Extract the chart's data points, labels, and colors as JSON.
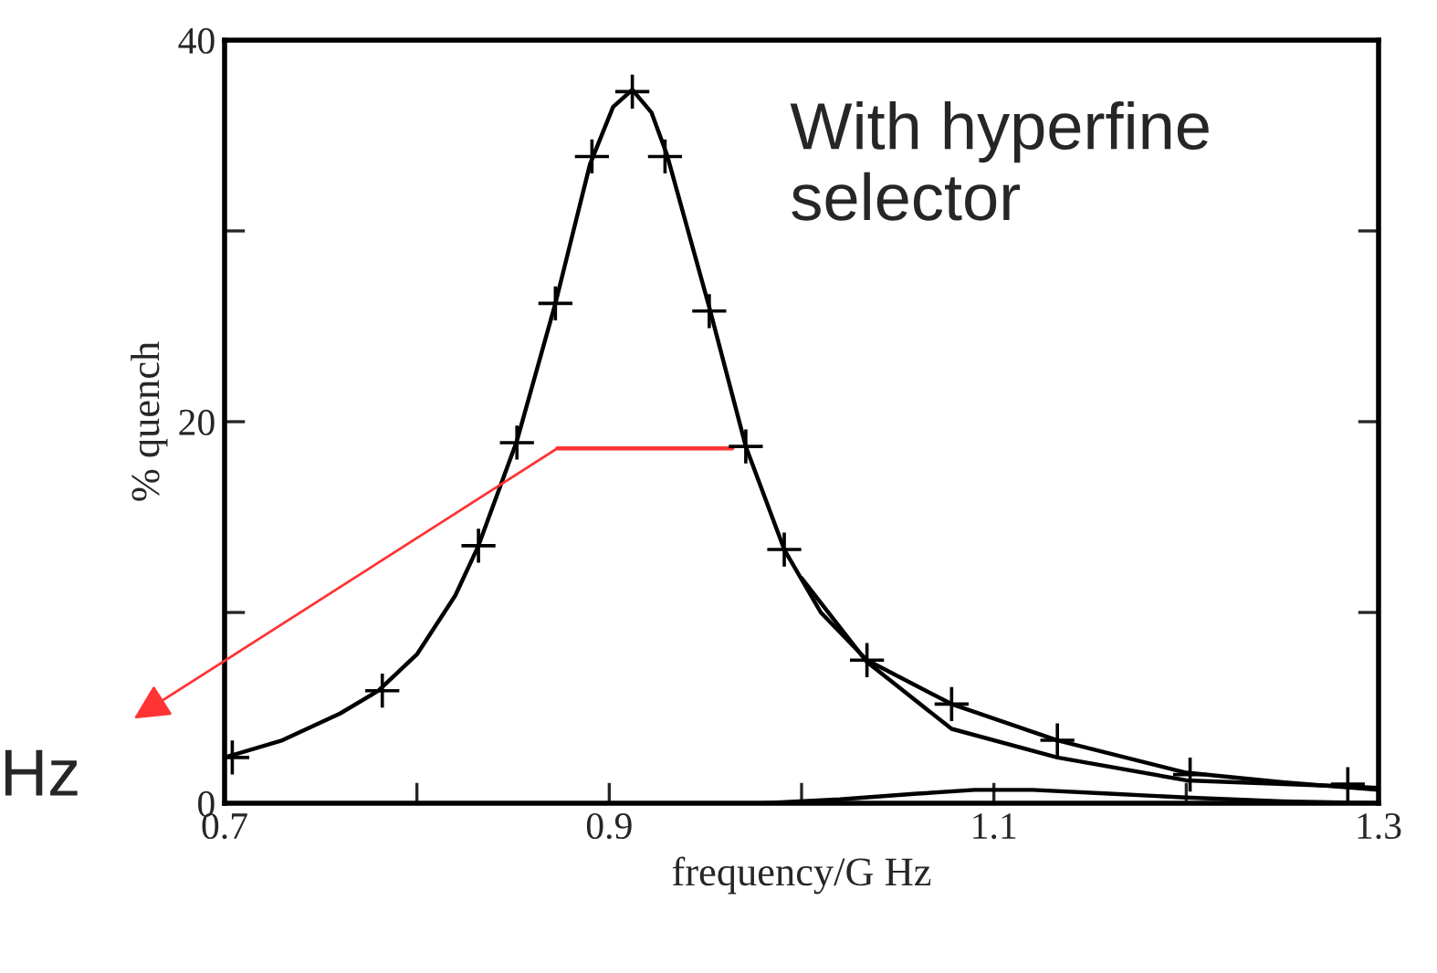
{
  "chart_data": {
    "type": "line",
    "xlabel": "frequency/G Hz",
    "ylabel": "% quench",
    "xlim": [
      0.7,
      1.3
    ],
    "xticks": [
      0.7,
      {
        "value": 0.8,
        "label": null
      },
      0.9,
      {
        "value": 1.0,
        "label": null
      },
      1.1,
      {
        "value": 1.2,
        "label": null
      },
      1.3
    ],
    "ylim": [
      0,
      40
    ],
    "yticks": [
      0,
      {
        "value": 10,
        "label": null
      },
      20,
      {
        "value": 30,
        "label": null
      },
      40
    ],
    "grid": false,
    "legend": false,
    "series": [
      {
        "type": "scatter",
        "marker": "cross",
        "color": "#000000",
        "x": [
          0.704,
          0.782,
          0.832,
          0.852,
          0.872,
          0.891,
          0.912,
          0.929,
          0.952,
          0.971,
          0.991,
          1.034,
          1.078,
          1.133,
          1.202,
          1.284
        ],
        "values": [
          2.4,
          5.9,
          13.5,
          18.9,
          26.2,
          33.9,
          37.3,
          33.9,
          25.8,
          18.7,
          13.3,
          7.5,
          5.2,
          3.3,
          1.5,
          1.0
        ]
      },
      {
        "line_style": "solid",
        "color": "#000000",
        "x": [
          0.7,
          0.73,
          0.76,
          0.78,
          0.8,
          0.82,
          0.832,
          0.852,
          0.872,
          0.89,
          0.902,
          0.912,
          0.922,
          0.93,
          0.952,
          0.971,
          0.991,
          1.01,
          1.034,
          1.078,
          1.133,
          1.2,
          1.25,
          1.3
        ],
        "values": [
          2.4,
          3.3,
          4.7,
          5.9,
          7.8,
          10.9,
          13.5,
          19,
          26.2,
          33.5,
          36.5,
          37.4,
          36.2,
          34,
          26,
          18.7,
          13.3,
          10.0,
          7.5,
          5.2,
          3.3,
          1.6,
          1.1,
          0.7
        ]
      },
      {
        "line_style": "solid",
        "color": "#000000",
        "x": [
          1.0,
          1.034,
          1.078,
          1.133,
          1.2,
          1.28,
          1.3
        ],
        "values": [
          11.8,
          7.4,
          3.9,
          2.4,
          1.2,
          0.9,
          0.8
        ]
      },
      {
        "line_style": "solid",
        "color": "#000000",
        "x": [
          0.98,
          1.02,
          1.06,
          1.09,
          1.12,
          1.16,
          1.2,
          1.25,
          1.3
        ],
        "values": [
          0,
          0.2,
          0.5,
          0.7,
          0.7,
          0.5,
          0.3,
          0.1,
          0
        ]
      },
      {
        "line_style": "solid",
        "color": "#ff3333",
        "x": [
          0.873,
          0.964
        ],
        "values": [
          18.6,
          18.6
        ]
      }
    ],
    "annotations": [
      "With hyperfine selector",
      {
        "text": "Hz",
        "x": 0.873,
        "y": 18.6
      }
    ]
  }
}
